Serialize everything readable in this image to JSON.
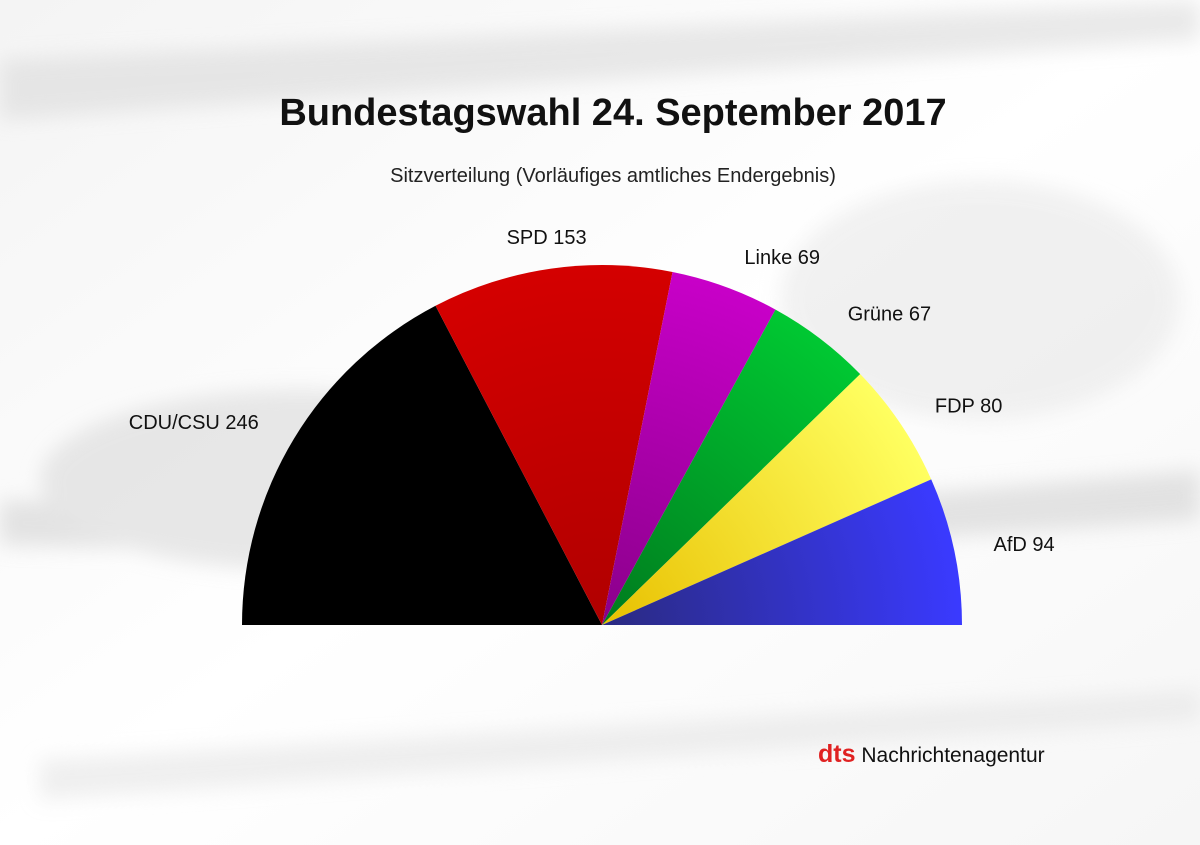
{
  "title": "Bundestagswahl 24. September 2017",
  "subtitle": "Sitzverteilung (Vorläufiges amtliches Endergebnis)",
  "brand": {
    "mark": "dts",
    "name": "Nachrichtenagentur",
    "mark_color": "#e02222"
  },
  "chart_data": {
    "type": "pie",
    "variant": "semicircle",
    "title": "Bundestagswahl 24. September 2017",
    "subtitle": "Sitzverteilung (Vorläufiges amtliches Endergebnis)",
    "slices": [
      {
        "party": "CDU/CSU",
        "seats": 246,
        "label": "CDU/CSU 246",
        "color": "#000000",
        "color_center": "#000000"
      },
      {
        "party": "SPD",
        "seats": 153,
        "label": "SPD 153",
        "color": "#d40000",
        "color_center": "#b00000"
      },
      {
        "party": "Linke",
        "seats": 69,
        "label": "Linke 69",
        "color": "#c800c8",
        "color_center": "#8a008a"
      },
      {
        "party": "Grüne",
        "seats": 67,
        "label": "Grüne 67",
        "color": "#00c832",
        "color_center": "#007a1e"
      },
      {
        "party": "FDP",
        "seats": 80,
        "label": "FDP 80",
        "color": "#ffff60",
        "color_center": "#e8c000"
      },
      {
        "party": "AfD",
        "seats": 94,
        "label": "AfD 94",
        "color": "#3a3aff",
        "color_center": "#2a2a80"
      }
    ]
  }
}
